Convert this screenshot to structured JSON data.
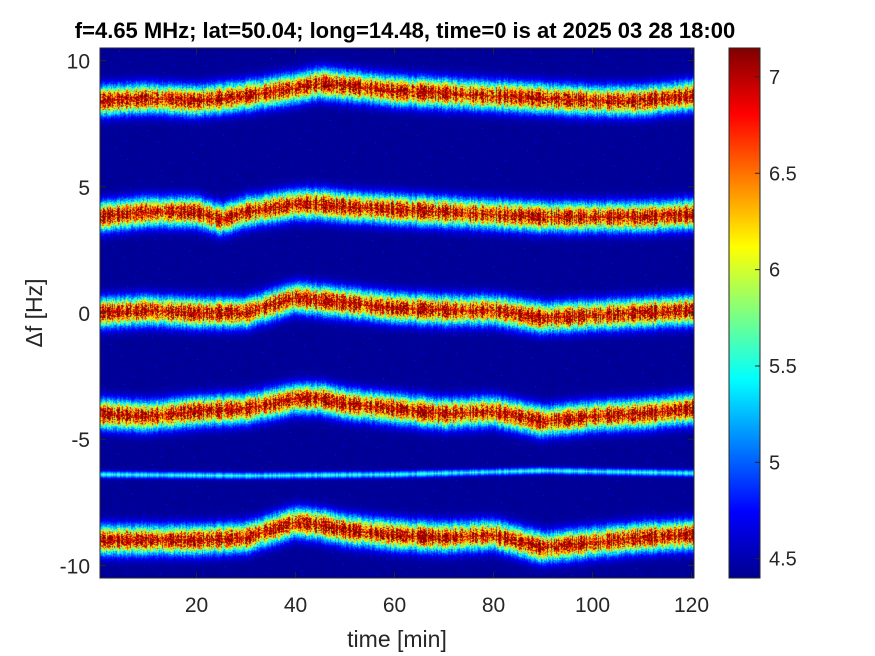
{
  "chart_data": {
    "type": "heatmap",
    "title": "f=4.65 MHz;  lat=50.04; long=14.48, time=0 is at 2025 03 28 18:00",
    "xlabel": "time [min]",
    "ylabel": "Δf [Hz]",
    "xlim": [
      0.5,
      120.5
    ],
    "ylim": [
      -10.5,
      10.5
    ],
    "xticks": [
      20,
      40,
      60,
      80,
      100,
      120
    ],
    "xtick_labels": [
      "20",
      "40",
      "60",
      "80",
      "100",
      "120"
    ],
    "yticks": [
      10,
      5,
      0,
      -5,
      -10
    ],
    "ytick_labels": [
      "10",
      "5",
      "0",
      "-5",
      "-10"
    ],
    "colorbar": {
      "clim": [
        4.4,
        7.15
      ],
      "ticks": [
        7,
        6.5,
        6,
        5.5,
        5,
        4.5
      ],
      "tick_labels": [
        "7",
        "6.5",
        "6",
        "5.5",
        "5",
        "4.5"
      ],
      "colormap": "jet"
    },
    "background_value": 4.45,
    "series": [
      {
        "peak_value": 7.0,
        "width_hz": 0.35,
        "time": [
          0,
          10,
          20,
          30,
          40,
          45,
          50,
          60,
          70,
          80,
          90,
          100,
          110,
          120
        ],
        "delta_f": [
          8.4,
          8.5,
          8.4,
          8.6,
          8.9,
          9.1,
          9.0,
          8.8,
          8.7,
          8.6,
          8.5,
          8.4,
          8.4,
          8.6
        ]
      },
      {
        "peak_value": 7.0,
        "width_hz": 0.35,
        "time": [
          0,
          10,
          20,
          25,
          30,
          40,
          45,
          50,
          60,
          70,
          80,
          90,
          100,
          110,
          120
        ],
        "delta_f": [
          3.8,
          4.0,
          4.0,
          3.7,
          4.0,
          4.3,
          4.3,
          4.2,
          4.1,
          4.0,
          3.9,
          3.8,
          3.8,
          3.8,
          3.9
        ]
      },
      {
        "peak_value": 7.0,
        "width_hz": 0.35,
        "time": [
          0,
          10,
          20,
          30,
          40,
          45,
          50,
          60,
          70,
          80,
          90,
          100,
          110,
          120
        ],
        "delta_f": [
          0.0,
          0.1,
          0.0,
          0.0,
          0.6,
          0.5,
          0.4,
          0.2,
          0.1,
          0.1,
          -0.2,
          -0.1,
          0.0,
          0.1
        ]
      },
      {
        "peak_value": 7.0,
        "width_hz": 0.35,
        "time": [
          0,
          10,
          20,
          30,
          40,
          45,
          50,
          60,
          70,
          80,
          90,
          100,
          110,
          120
        ],
        "delta_f": [
          -4.0,
          -4.1,
          -3.9,
          -3.8,
          -3.4,
          -3.4,
          -3.6,
          -3.8,
          -4.0,
          -3.9,
          -4.3,
          -4.1,
          -4.0,
          -3.8
        ]
      },
      {
        "peak_value": 5.4,
        "width_hz": 0.09,
        "time": [
          0,
          30,
          60,
          90,
          120
        ],
        "delta_f": [
          -6.4,
          -6.45,
          -6.4,
          -6.25,
          -6.35
        ]
      },
      {
        "peak_value": 7.0,
        "width_hz": 0.35,
        "time": [
          0,
          10,
          20,
          30,
          40,
          45,
          50,
          60,
          70,
          80,
          90,
          100,
          110,
          120
        ],
        "delta_f": [
          -9.0,
          -9.0,
          -9.0,
          -8.9,
          -8.3,
          -8.4,
          -8.6,
          -8.8,
          -8.9,
          -8.8,
          -9.3,
          -9.1,
          -8.9,
          -8.8
        ]
      }
    ]
  }
}
